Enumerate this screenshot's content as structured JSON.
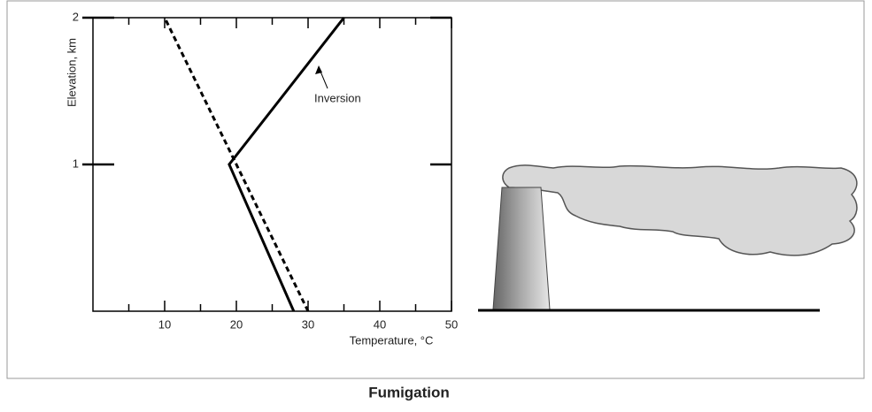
{
  "chart_data": {
    "type": "line",
    "caption": "Fumigation",
    "xlabel": "Temperature, °C",
    "ylabel": "Elevation, km",
    "annotation": "Inversion",
    "xlim": [
      0,
      50
    ],
    "xticks": [
      10,
      20,
      30,
      40,
      50
    ],
    "xminor_ticks": [
      5,
      15,
      25,
      35,
      45
    ],
    "ylim": [
      0,
      2
    ],
    "yticks": [
      1,
      2
    ],
    "series": [
      {
        "color": "#000000",
        "dashed": false,
        "x": [
          28,
          19,
          35
        ],
        "values": [
          0,
          1,
          2
        ]
      },
      {
        "color": "#000000",
        "dashed": true,
        "x": [
          30,
          10
        ],
        "values": [
          0,
          2
        ]
      }
    ]
  }
}
